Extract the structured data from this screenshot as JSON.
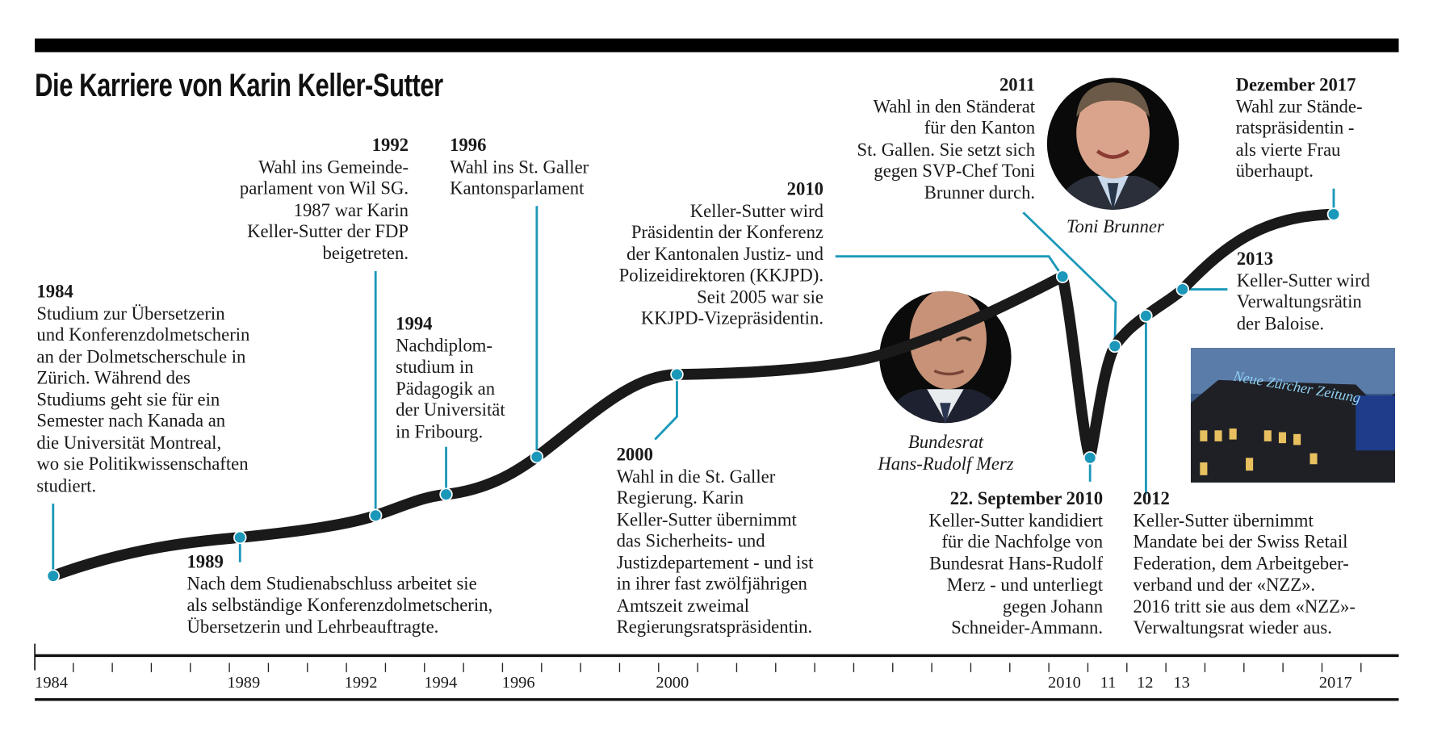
{
  "title": "Die Karriere von Karin Keller-Sutter",
  "colors": {
    "accent": "#1b98b9",
    "curve": "#1a1a1a",
    "rule": "#000000"
  },
  "events": [
    {
      "year": "1984",
      "text": "Studium zur Übersetzerin\nund Konferenzdolmetscherin\nan der Dolmetscherschule in\nZürich. Während des\nStudiums geht sie für ein\nSemester nach Kanada an\ndie Universität Montreal,\nwo sie Politikwissenschaften\nstudiert."
    },
    {
      "year": "1989",
      "text": "Nach dem Studienabschluss arbeitet sie\nals selbständige Konferenzdolmetscherin,\nÜbersetzerin und Lehrbeauftragte."
    },
    {
      "year": "1992",
      "text": "Wahl ins Gemeinde-\nparlament von Wil SG.\n1987 war Karin\nKeller-Sutter der FDP\nbeigetreten."
    },
    {
      "year": "1994",
      "text": "Nachdiplom-\nstudium in\nPädagogik an\nder Universität\nin Fribourg."
    },
    {
      "year": "1996",
      "text": "Wahl ins St. Galler\nKantonsparlament"
    },
    {
      "year": "2000",
      "text": "Wahl in die St. Galler\nRegierung. Karin\nKeller-Sutter übernimmt\ndas Sicherheits- und\nJustizdepartement - und ist\nin ihrer fast zwölfjährigen\nAmtszeit zweimal\nRegierungsratspräsidentin."
    },
    {
      "year": "2010",
      "text": "Keller-Sutter wird\nPräsidentin der Konferenz\nder Kantonalen Justiz- und\nPolizeidirektoren (KKJPD).\nSeit 2005 war sie\nKKJPD-Vizepräsidentin."
    },
    {
      "year": "22. September 2010",
      "text": "Keller-Sutter kandidiert\nfür die Nachfolge von\nBundesrat Hans-Rudolf\nMerz - und unterliegt\ngegen Johann\nSchneider-Ammann."
    },
    {
      "year": "2011",
      "text": "Wahl in den Ständerat\nfür den Kanton\nSt. Gallen. Sie setzt sich\ngegen SVP-Chef Toni\nBrunner durch."
    },
    {
      "year": "2012",
      "text": "Keller-Sutter übernimmt\nMandate bei der Swiss Retail\nFederation, dem Arbeitgeber-\nverband und der «NZZ».\n2016 tritt sie aus dem «NZZ»-\nVerwaltungsrat wieder aus."
    },
    {
      "year": "2013",
      "text": "Keller-Sutter wird\nVerwaltungsrätin\nder Baloise."
    },
    {
      "year": "Dezember 2017",
      "text": "Wahl zur Stände-\nratspräsidentin -\nals vierte Frau\nüberhaupt."
    }
  ],
  "photos": {
    "brunner": {
      "caption": "Toni Brunner"
    },
    "merz": {
      "caption": "Bundesrat\nHans-Rudolf Merz"
    },
    "nzz": {
      "sign": "Neue Zürcher Zeitung"
    }
  },
  "axis": {
    "labels": [
      "1984",
      "1989",
      "1992",
      "1994",
      "1996",
      "2000",
      "2010",
      "11",
      "12",
      "13",
      "2017"
    ]
  }
}
